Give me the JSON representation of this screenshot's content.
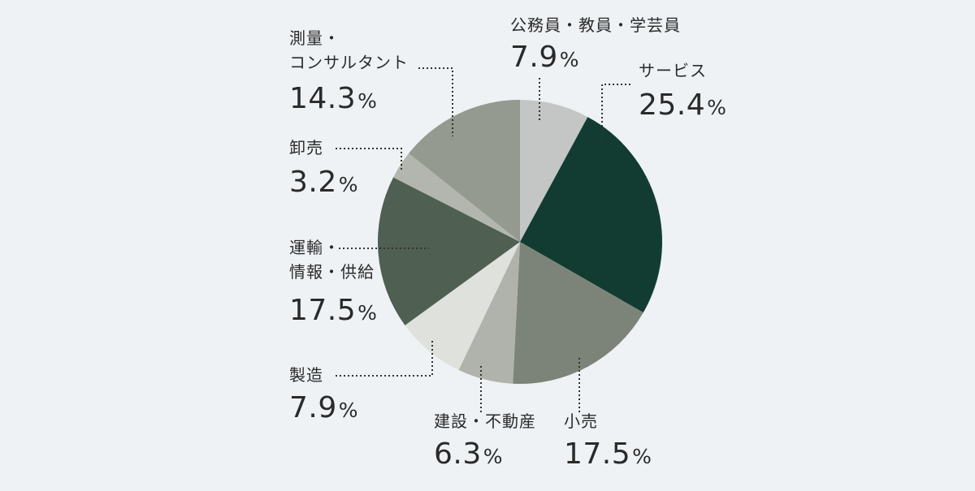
{
  "chart_data": {
    "type": "pie",
    "slices": [
      {
        "label": "公務員・教員・学芸員",
        "value": 7.9,
        "pct_text": "7.9",
        "pct_unit": "%",
        "color": "#c3c6c5"
      },
      {
        "label": "サービス",
        "value": 25.4,
        "pct_text": "25.4",
        "pct_unit": "%",
        "color": "#123c31"
      },
      {
        "label": "小売",
        "value": 17.5,
        "pct_text": "17.5",
        "pct_unit": "%",
        "color": "#7c8479"
      },
      {
        "label": "建設・不動産",
        "value": 6.3,
        "pct_text": "6.3",
        "pct_unit": "%",
        "color": "#b0b3ab"
      },
      {
        "label": "製造",
        "value": 7.9,
        "pct_text": "7.9",
        "pct_unit": "%",
        "color": "#dfe1dc"
      },
      {
        "label": "運輸・情報・供給",
        "label_lines": [
          "運輸・",
          "情報・供給"
        ],
        "value": 17.5,
        "pct_text": "17.5",
        "pct_unit": "%",
        "color": "#4f5f51"
      },
      {
        "label": "卸売",
        "value": 3.2,
        "pct_text": "3.2",
        "pct_unit": "%",
        "color": "#b3b6ae"
      },
      {
        "label": "測量・コンサルタント",
        "label_lines": [
          "測量・",
          "コンサルタント"
        ],
        "value": 14.3,
        "pct_text": "14.3",
        "pct_unit": "%",
        "color": "#949a8f"
      }
    ]
  }
}
